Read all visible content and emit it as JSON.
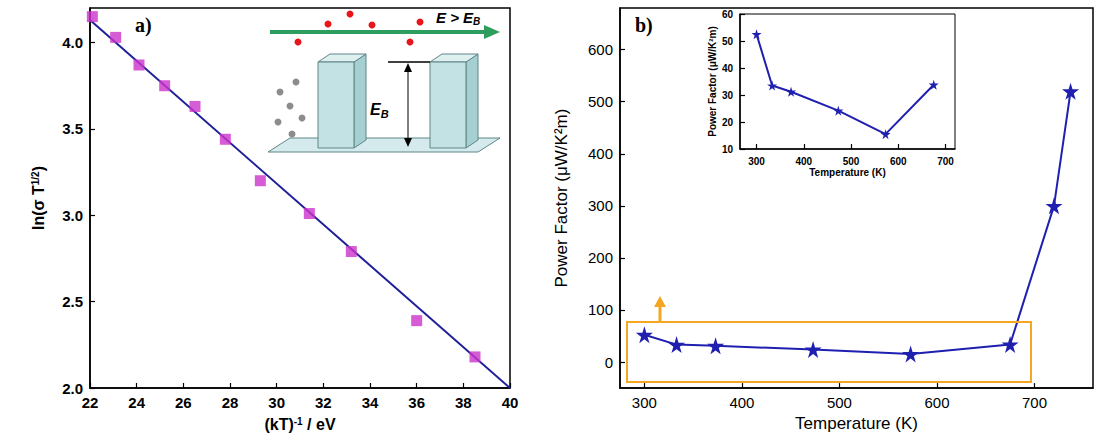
{
  "chart_data": [
    {
      "title": "a)",
      "type": "scatter",
      "x_label": {
        "text": "(kT)",
        "superscript": "-1",
        "tail": " / eV"
      },
      "y_label": {
        "text": "ln(σ T",
        "superscript": "1/2",
        "tail": ")"
      },
      "xlim": [
        22,
        40
      ],
      "xticks": [
        22,
        24,
        26,
        28,
        30,
        32,
        34,
        36,
        38,
        40
      ],
      "ylim": [
        2.0,
        4.2
      ],
      "yticks": [
        {
          "value": 2,
          "label": "2.0"
        },
        2.5,
        {
          "value": 3,
          "label": "3.0"
        },
        3.5,
        {
          "value": 4,
          "label": "4.0"
        }
      ],
      "grid": false,
      "series": [
        {
          "type": "scatter",
          "marker": "square",
          "color": "#cc33cc",
          "x": [
            22.1,
            23.1,
            24.1,
            25.2,
            26.5,
            27.8,
            29.3,
            31.4,
            33.2,
            36.0,
            38.5
          ],
          "values": [
            4.15,
            4.03,
            3.87,
            3.75,
            3.63,
            3.44,
            3.2,
            3.01,
            2.79,
            2.39,
            2.18
          ]
        },
        {
          "type": "line",
          "line_style": "solid",
          "color": "#1f1f99",
          "x": [
            22,
            40
          ],
          "values": [
            4.13,
            2.0
          ]
        }
      ],
      "inset": {
        "type": "diagram",
        "beam_label": {
          "text": "E > E",
          "subscript": "B"
        },
        "barrier_label": {
          "text": "E",
          "subscript": "B"
        }
      }
    },
    {
      "title": "b)",
      "type": "line",
      "x_label": "Temperature (K)",
      "y_label": "Power Factor (μW/K²m)",
      "xlim": [
        275,
        760
      ],
      "xticks": [
        300,
        400,
        500,
        600,
        700
      ],
      "ylim": [
        -50,
        680
      ],
      "yticks": [
        0,
        100,
        200,
        300,
        400,
        500,
        600
      ],
      "grid": false,
      "series": [
        {
          "type": "line",
          "marker": "star",
          "color": "#1f1fb0",
          "x": [
            300,
            333,
            373,
            473,
            573,
            675,
            720,
            737
          ],
          "values": [
            52.5,
            33.5,
            31.2,
            24.2,
            15.5,
            33.8,
            300,
            520
          ]
        }
      ],
      "inset": {
        "type": "line",
        "x_label": "Temperature (K)",
        "y_label": "Power Factor (μW/K²m)",
        "xlim": [
          265,
          720
        ],
        "xticks": [
          300,
          400,
          500,
          600,
          700
        ],
        "ylim": [
          10,
          60
        ],
        "yticks": [
          10,
          20,
          30,
          40,
          50,
          60
        ],
        "series": [
          {
            "type": "line",
            "marker": "star",
            "color": "#1f1fb0",
            "x": [
              300,
              333,
              373,
              473,
              573,
              675
            ],
            "values": [
              52.5,
              33.5,
              31.2,
              24.2,
              15.5,
              33.8
            ]
          }
        ]
      }
    }
  ]
}
